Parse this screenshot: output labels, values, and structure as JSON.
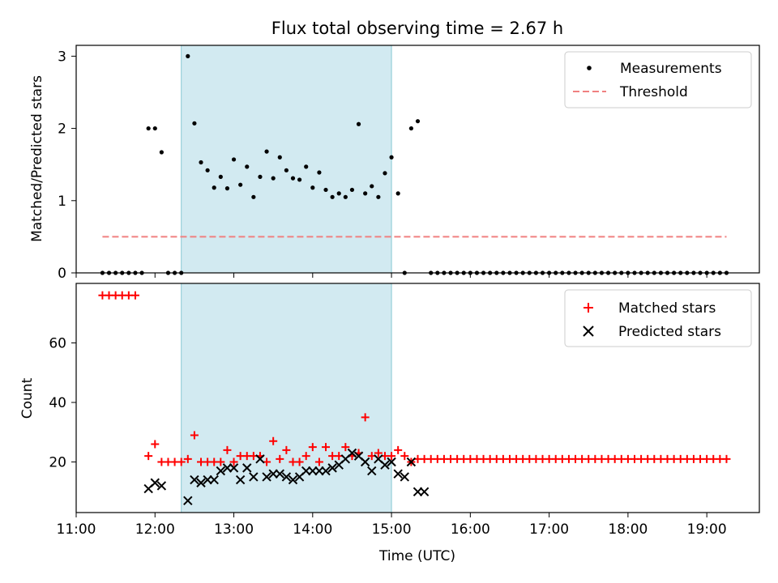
{
  "title": "Flux total observing time = 2.67 h",
  "colors": {
    "measurement": "#000000",
    "threshold": "#f08080",
    "matched": "#ff0000",
    "predicted": "#000000",
    "span": "#add8e6"
  },
  "chart_data": [
    {
      "type": "scatter",
      "ylabel": "Matched/Predicted stars",
      "xlim": [
        "11:00",
        "19:40"
      ],
      "ylim": [
        0,
        3.15
      ],
      "yticks": [
        "0",
        "1",
        "2",
        "3"
      ],
      "highlight_span": [
        "12:20",
        "15:00"
      ],
      "legend_position": "top-right",
      "legend": {
        "measurements": "Measurements",
        "threshold": "Threshold"
      },
      "threshold": {
        "y": 0.5,
        "x_start": "11:20",
        "x_end": "19:15"
      },
      "measurements": [
        [
          "11:20",
          0
        ],
        [
          "11:25",
          0
        ],
        [
          "11:30",
          0
        ],
        [
          "11:35",
          0
        ],
        [
          "11:40",
          0
        ],
        [
          "11:45",
          0
        ],
        [
          "11:50",
          0
        ],
        [
          "11:55",
          2.0
        ],
        [
          "12:00",
          2.0
        ],
        [
          "12:05",
          1.67
        ],
        [
          "12:10",
          0
        ],
        [
          "12:15",
          0
        ],
        [
          "12:20",
          0
        ],
        [
          "12:25",
          3.0
        ],
        [
          "12:30",
          2.07
        ],
        [
          "12:35",
          1.53
        ],
        [
          "12:40",
          1.42
        ],
        [
          "12:45",
          1.18
        ],
        [
          "12:50",
          1.33
        ],
        [
          "12:55",
          1.17
        ],
        [
          "13:00",
          1.57
        ],
        [
          "13:05",
          1.22
        ],
        [
          "13:10",
          1.47
        ],
        [
          "13:15",
          1.05
        ],
        [
          "13:20",
          1.33
        ],
        [
          "13:25",
          1.68
        ],
        [
          "13:30",
          1.31
        ],
        [
          "13:35",
          1.6
        ],
        [
          "13:40",
          1.42
        ],
        [
          "13:45",
          1.31
        ],
        [
          "13:50",
          1.29
        ],
        [
          "13:55",
          1.47
        ],
        [
          "14:00",
          1.18
        ],
        [
          "14:05",
          1.39
        ],
        [
          "14:10",
          1.15
        ],
        [
          "14:15",
          1.05
        ],
        [
          "14:20",
          1.1
        ],
        [
          "14:25",
          1.05
        ],
        [
          "14:30",
          1.15
        ],
        [
          "14:35",
          2.06
        ],
        [
          "14:40",
          1.1
        ],
        [
          "14:45",
          1.2
        ],
        [
          "14:50",
          1.05
        ],
        [
          "14:55",
          1.38
        ],
        [
          "15:00",
          1.6
        ],
        [
          "15:05",
          1.1
        ],
        [
          "15:10",
          0
        ],
        [
          "15:15",
          2.0
        ],
        [
          "15:20",
          2.1
        ],
        [
          "15:30",
          0
        ],
        [
          "15:35",
          0
        ],
        [
          "15:40",
          0
        ],
        [
          "15:45",
          0
        ],
        [
          "15:50",
          0
        ],
        [
          "15:55",
          0
        ],
        [
          "16:00",
          0
        ],
        [
          "16:05",
          0
        ],
        [
          "16:10",
          0
        ],
        [
          "16:15",
          0
        ],
        [
          "16:20",
          0
        ],
        [
          "16:25",
          0
        ],
        [
          "16:30",
          0
        ],
        [
          "16:35",
          0
        ],
        [
          "16:40",
          0
        ],
        [
          "16:45",
          0
        ],
        [
          "16:50",
          0
        ],
        [
          "16:55",
          0
        ],
        [
          "17:00",
          0
        ],
        [
          "17:05",
          0
        ],
        [
          "17:10",
          0
        ],
        [
          "17:15",
          0
        ],
        [
          "17:20",
          0
        ],
        [
          "17:25",
          0
        ],
        [
          "17:30",
          0
        ],
        [
          "17:35",
          0
        ],
        [
          "17:40",
          0
        ],
        [
          "17:45",
          0
        ],
        [
          "17:50",
          0
        ],
        [
          "17:55",
          0
        ],
        [
          "18:00",
          0
        ],
        [
          "18:05",
          0
        ],
        [
          "18:10",
          0
        ],
        [
          "18:15",
          0
        ],
        [
          "18:20",
          0
        ],
        [
          "18:25",
          0
        ],
        [
          "18:30",
          0
        ],
        [
          "18:35",
          0
        ],
        [
          "18:40",
          0
        ],
        [
          "18:45",
          0
        ],
        [
          "18:50",
          0
        ],
        [
          "18:55",
          0
        ],
        [
          "19:00",
          0
        ],
        [
          "19:05",
          0
        ],
        [
          "19:10",
          0
        ],
        [
          "19:15",
          0
        ]
      ]
    },
    {
      "type": "scatter",
      "xlabel": "Time (UTC)",
      "ylabel": "Count",
      "xlim": [
        "11:00",
        "19:40"
      ],
      "ylim": [
        3,
        80
      ],
      "yticks": [
        "20",
        "40",
        "60"
      ],
      "xticks": [
        "11:00",
        "12:00",
        "13:00",
        "14:00",
        "15:00",
        "16:00",
        "17:00",
        "18:00",
        "19:00"
      ],
      "highlight_span": [
        "12:20",
        "15:00"
      ],
      "legend_position": "top-right",
      "legend": {
        "matched": "Matched stars",
        "predicted": "Predicted stars"
      },
      "matched": [
        [
          "11:20",
          76
        ],
        [
          "11:25",
          76
        ],
        [
          "11:30",
          76
        ],
        [
          "11:35",
          76
        ],
        [
          "11:40",
          76
        ],
        [
          "11:45",
          76
        ],
        [
          "11:55",
          22
        ],
        [
          "12:00",
          26
        ],
        [
          "12:05",
          20
        ],
        [
          "12:10",
          20
        ],
        [
          "12:15",
          20
        ],
        [
          "12:20",
          20
        ],
        [
          "12:25",
          21
        ],
        [
          "12:30",
          29
        ],
        [
          "12:35",
          20
        ],
        [
          "12:40",
          20
        ],
        [
          "12:45",
          20
        ],
        [
          "12:50",
          20
        ],
        [
          "12:55",
          24
        ],
        [
          "13:00",
          20
        ],
        [
          "13:05",
          22
        ],
        [
          "13:10",
          22
        ],
        [
          "13:15",
          22
        ],
        [
          "13:20",
          22
        ],
        [
          "13:25",
          20
        ],
        [
          "13:30",
          27
        ],
        [
          "13:35",
          21
        ],
        [
          "13:40",
          24
        ],
        [
          "13:45",
          20
        ],
        [
          "13:50",
          20
        ],
        [
          "13:55",
          22
        ],
        [
          "14:00",
          25
        ],
        [
          "14:05",
          20
        ],
        [
          "14:10",
          25
        ],
        [
          "14:15",
          22
        ],
        [
          "14:20",
          22
        ],
        [
          "14:25",
          25
        ],
        [
          "14:30",
          22
        ],
        [
          "14:35",
          23
        ],
        [
          "14:40",
          35
        ],
        [
          "14:45",
          22
        ],
        [
          "14:50",
          23
        ],
        [
          "14:55",
          22
        ],
        [
          "15:00",
          22
        ],
        [
          "15:05",
          24
        ],
        [
          "15:10",
          22
        ],
        [
          "15:15",
          20
        ],
        [
          "15:20",
          21
        ],
        [
          "15:25",
          21
        ],
        [
          "15:30",
          21
        ],
        [
          "15:35",
          21
        ],
        [
          "15:40",
          21
        ],
        [
          "15:45",
          21
        ],
        [
          "15:50",
          21
        ],
        [
          "15:55",
          21
        ],
        [
          "16:00",
          21
        ],
        [
          "16:05",
          21
        ],
        [
          "16:10",
          21
        ],
        [
          "16:15",
          21
        ],
        [
          "16:20",
          21
        ],
        [
          "16:25",
          21
        ],
        [
          "16:30",
          21
        ],
        [
          "16:35",
          21
        ],
        [
          "16:40",
          21
        ],
        [
          "16:45",
          21
        ],
        [
          "16:50",
          21
        ],
        [
          "16:55",
          21
        ],
        [
          "17:00",
          21
        ],
        [
          "17:05",
          21
        ],
        [
          "17:10",
          21
        ],
        [
          "17:15",
          21
        ],
        [
          "17:20",
          21
        ],
        [
          "17:25",
          21
        ],
        [
          "17:30",
          21
        ],
        [
          "17:35",
          21
        ],
        [
          "17:40",
          21
        ],
        [
          "17:45",
          21
        ],
        [
          "17:50",
          21
        ],
        [
          "17:55",
          21
        ],
        [
          "18:00",
          21
        ],
        [
          "18:05",
          21
        ],
        [
          "18:10",
          21
        ],
        [
          "18:15",
          21
        ],
        [
          "18:20",
          21
        ],
        [
          "18:25",
          21
        ],
        [
          "18:30",
          21
        ],
        [
          "18:35",
          21
        ],
        [
          "18:40",
          21
        ],
        [
          "18:45",
          21
        ],
        [
          "18:50",
          21
        ],
        [
          "18:55",
          21
        ],
        [
          "19:00",
          21
        ],
        [
          "19:05",
          21
        ],
        [
          "19:10",
          21
        ],
        [
          "19:15",
          21
        ]
      ],
      "predicted": [
        [
          "11:55",
          11
        ],
        [
          "12:00",
          13
        ],
        [
          "12:05",
          12
        ],
        [
          "12:25",
          7
        ],
        [
          "12:30",
          14
        ],
        [
          "12:35",
          13
        ],
        [
          "12:40",
          14
        ],
        [
          "12:45",
          14
        ],
        [
          "12:50",
          17
        ],
        [
          "12:55",
          18
        ],
        [
          "13:00",
          18
        ],
        [
          "13:05",
          14
        ],
        [
          "13:10",
          18
        ],
        [
          "13:15",
          15
        ],
        [
          "13:20",
          21
        ],
        [
          "13:25",
          15
        ],
        [
          "13:30",
          16
        ],
        [
          "13:35",
          16
        ],
        [
          "13:40",
          15
        ],
        [
          "13:45",
          14
        ],
        [
          "13:50",
          15
        ],
        [
          "13:55",
          17
        ],
        [
          "14:00",
          17
        ],
        [
          "14:05",
          17
        ],
        [
          "14:10",
          17
        ],
        [
          "14:15",
          18
        ],
        [
          "14:20",
          19
        ],
        [
          "14:25",
          21
        ],
        [
          "14:30",
          23
        ],
        [
          "14:35",
          22
        ],
        [
          "14:40",
          20
        ],
        [
          "14:45",
          17
        ],
        [
          "14:50",
          21
        ],
        [
          "14:55",
          19
        ],
        [
          "15:00",
          20
        ],
        [
          "15:05",
          16
        ],
        [
          "15:10",
          15
        ],
        [
          "15:15",
          20
        ],
        [
          "15:20",
          10
        ],
        [
          "15:25",
          10
        ]
      ]
    }
  ]
}
